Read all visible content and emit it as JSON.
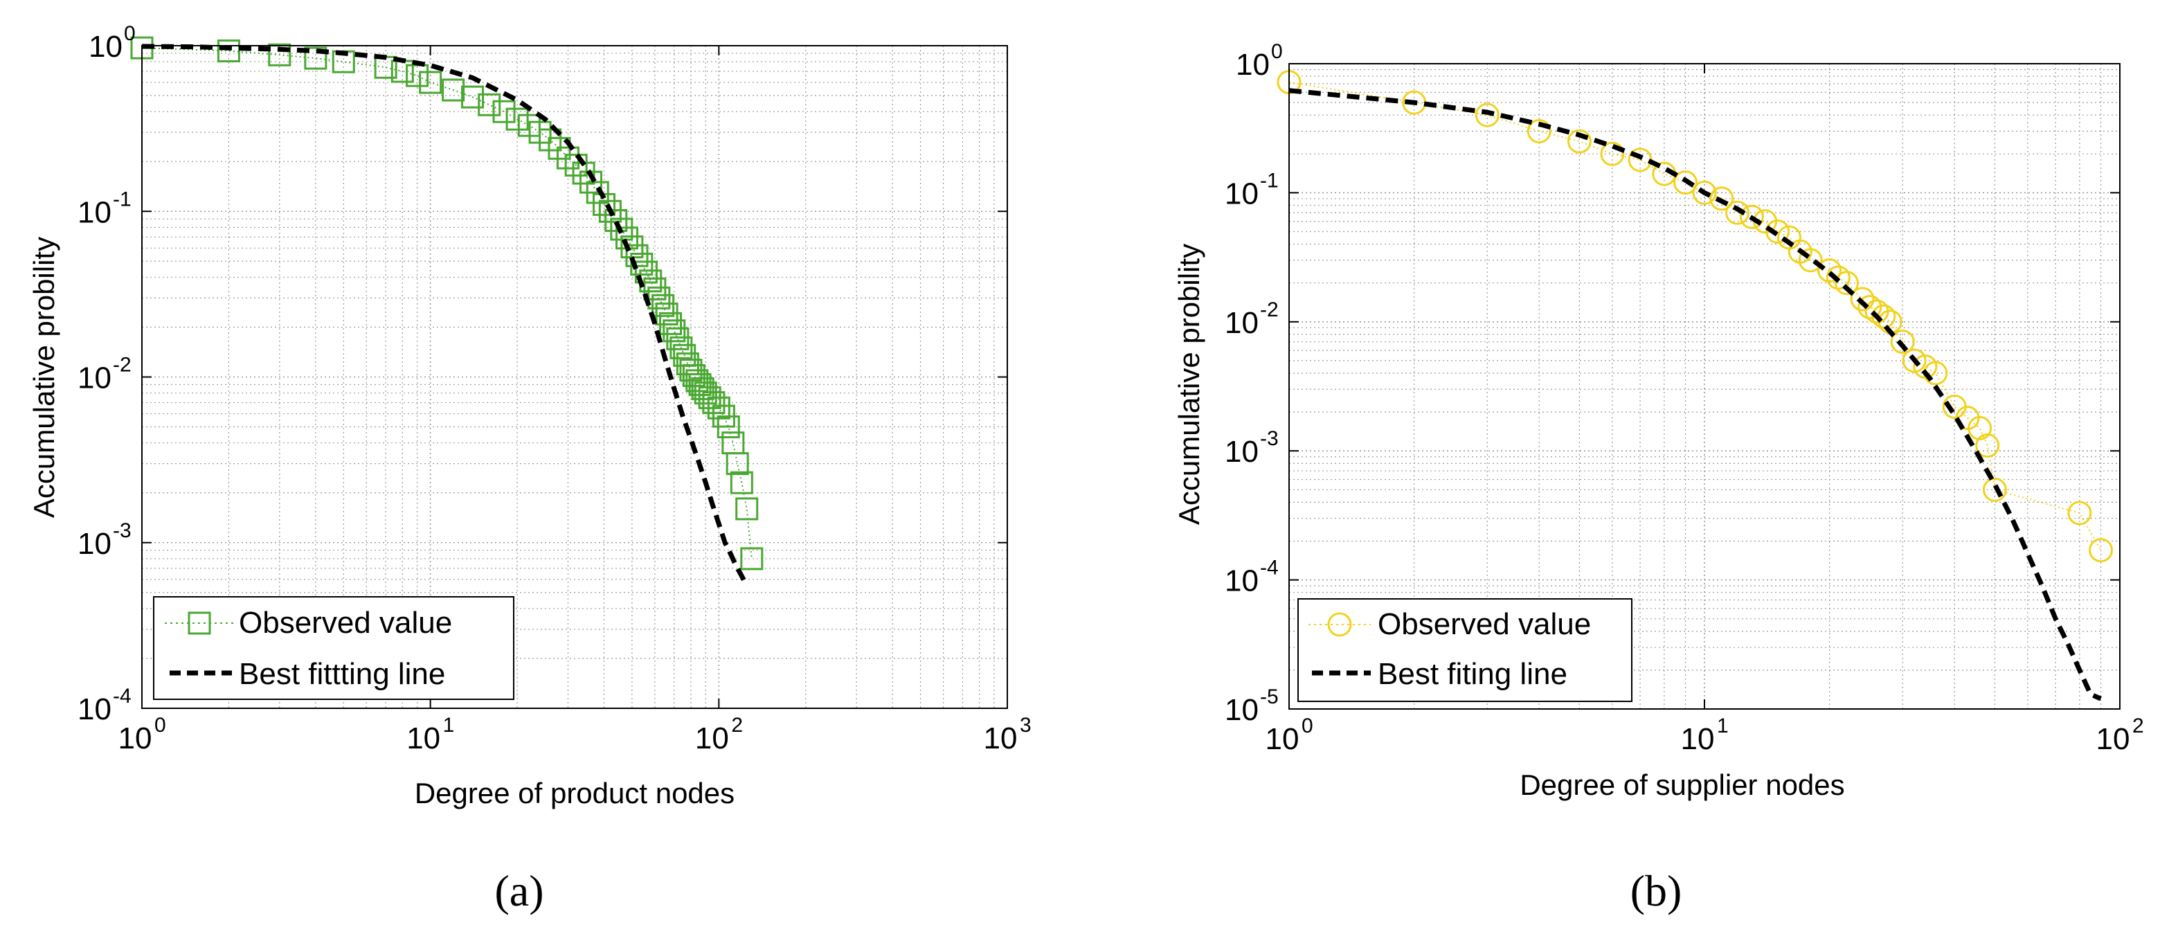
{
  "chart_data": [
    {
      "type": "scatter",
      "scale": "log-log",
      "panel_label": "(a)",
      "xlabel": "Degree of product nodes",
      "ylabel": "Accumulative probility",
      "xlim": [
        1,
        1000
      ],
      "ylim": [
        0.0001,
        1
      ],
      "grid": true,
      "legend_placement": "bottom-left",
      "x_ticks": [
        {
          "base": "10",
          "exp": "0"
        },
        {
          "base": "10",
          "exp": "1"
        },
        {
          "base": "10",
          "exp": "2"
        },
        {
          "base": "10",
          "exp": "3"
        }
      ],
      "y_ticks": [
        {
          "base": "10",
          "exp": "0"
        },
        {
          "base": "10",
          "exp": "-1"
        },
        {
          "base": "10",
          "exp": "-2"
        },
        {
          "base": "10",
          "exp": "-3"
        },
        {
          "base": "10",
          "exp": "-4"
        }
      ],
      "series": [
        {
          "name": "Observed value",
          "marker": "square",
          "color": "#4aa832",
          "x": [
            1,
            2,
            3,
            4,
            5,
            7,
            8,
            9,
            10,
            12,
            14,
            16,
            18,
            20,
            22,
            24,
            26,
            28,
            30,
            32,
            34,
            36,
            38,
            40,
            42,
            44,
            46,
            48,
            50,
            52,
            54,
            56,
            58,
            60,
            62,
            64,
            66,
            68,
            70,
            72,
            74,
            76,
            78,
            80,
            82,
            84,
            86,
            88,
            90,
            93,
            96,
            100,
            104,
            108,
            112,
            116,
            120,
            125,
            130
          ],
          "y": [
            0.97,
            0.93,
            0.88,
            0.84,
            0.8,
            0.74,
            0.7,
            0.66,
            0.6,
            0.54,
            0.49,
            0.44,
            0.4,
            0.36,
            0.33,
            0.3,
            0.27,
            0.24,
            0.21,
            0.19,
            0.17,
            0.15,
            0.13,
            0.11,
            0.1,
            0.088,
            0.078,
            0.069,
            0.061,
            0.054,
            0.048,
            0.043,
            0.038,
            0.034,
            0.03,
            0.027,
            0.024,
            0.021,
            0.019,
            0.017,
            0.015,
            0.0135,
            0.012,
            0.011,
            0.0102,
            0.0095,
            0.009,
            0.0085,
            0.008,
            0.0075,
            0.007,
            0.0065,
            0.0058,
            0.005,
            0.004,
            0.003,
            0.0023,
            0.0016,
            0.0008
          ]
        },
        {
          "name": "Best fittting line",
          "line": "dashed",
          "color": "#000000",
          "x": [
            1,
            1.5,
            2,
            3,
            4,
            5,
            7,
            10,
            14,
            20,
            25,
            30,
            35,
            40,
            45,
            50,
            55,
            60,
            65,
            70,
            75,
            80,
            85,
            90,
            95,
            100,
            105,
            110,
            115,
            120,
            125
          ],
          "y": [
            0.99,
            0.985,
            0.97,
            0.95,
            0.93,
            0.9,
            0.85,
            0.76,
            0.64,
            0.47,
            0.36,
            0.26,
            0.18,
            0.12,
            0.08,
            0.052,
            0.033,
            0.021,
            0.013,
            0.0085,
            0.0058,
            0.0042,
            0.0031,
            0.0023,
            0.0017,
            0.0013,
            0.001,
            0.00085,
            0.00072,
            0.00063,
            0.00055
          ]
        }
      ]
    },
    {
      "type": "scatter",
      "scale": "log-log",
      "panel_label": "(b)",
      "xlabel": "Degree of supplier nodes",
      "ylabel": "Accumulative probility",
      "xlim": [
        1,
        100
      ],
      "ylim": [
        1e-05,
        1
      ],
      "grid": true,
      "legend_placement": "bottom-left",
      "x_ticks": [
        {
          "base": "10",
          "exp": "0"
        },
        {
          "base": "10",
          "exp": "1"
        },
        {
          "base": "10",
          "exp": "2"
        }
      ],
      "y_ticks": [
        {
          "base": "10",
          "exp": "0"
        },
        {
          "base": "10",
          "exp": "-1"
        },
        {
          "base": "10",
          "exp": "-2"
        },
        {
          "base": "10",
          "exp": "-3"
        },
        {
          "base": "10",
          "exp": "-4"
        },
        {
          "base": "10",
          "exp": "-5"
        }
      ],
      "series": [
        {
          "name": "Observed value",
          "marker": "circle",
          "color": "#f2d21c",
          "x": [
            1,
            2,
            3,
            4,
            5,
            6,
            7,
            8,
            9,
            10,
            11,
            12,
            13,
            14,
            15,
            16,
            17,
            18,
            20,
            21,
            22,
            24,
            25,
            26,
            27,
            28,
            30,
            32,
            34,
            36,
            40,
            43,
            46,
            48,
            50,
            80,
            90
          ],
          "y": [
            0.72,
            0.5,
            0.4,
            0.3,
            0.25,
            0.2,
            0.18,
            0.14,
            0.12,
            0.1,
            0.09,
            0.07,
            0.065,
            0.06,
            0.05,
            0.045,
            0.035,
            0.03,
            0.025,
            0.022,
            0.02,
            0.015,
            0.013,
            0.012,
            0.011,
            0.01,
            0.007,
            0.005,
            0.0045,
            0.004,
            0.0022,
            0.0018,
            0.0015,
            0.0011,
            0.0005,
            0.00033,
            0.00017
          ]
        },
        {
          "name": "Best fiting line",
          "line": "dashed",
          "color": "#000000",
          "x": [
            1,
            2,
            3,
            4,
            5,
            6,
            7,
            8,
            9,
            10,
            12,
            14,
            16,
            18,
            20,
            23,
            26,
            30,
            35,
            40,
            45,
            50,
            55,
            60,
            65,
            70,
            75,
            80,
            85,
            90
          ],
          "y": [
            0.62,
            0.5,
            0.42,
            0.34,
            0.28,
            0.23,
            0.19,
            0.155,
            0.125,
            0.1,
            0.075,
            0.055,
            0.041,
            0.031,
            0.024,
            0.016,
            0.011,
            0.0065,
            0.0036,
            0.0019,
            0.001,
            0.00055,
            0.0003,
            0.00016,
            9e-05,
            5e-05,
            3.2e-05,
            2e-05,
            1.3e-05,
            1.2e-05
          ]
        }
      ]
    }
  ]
}
